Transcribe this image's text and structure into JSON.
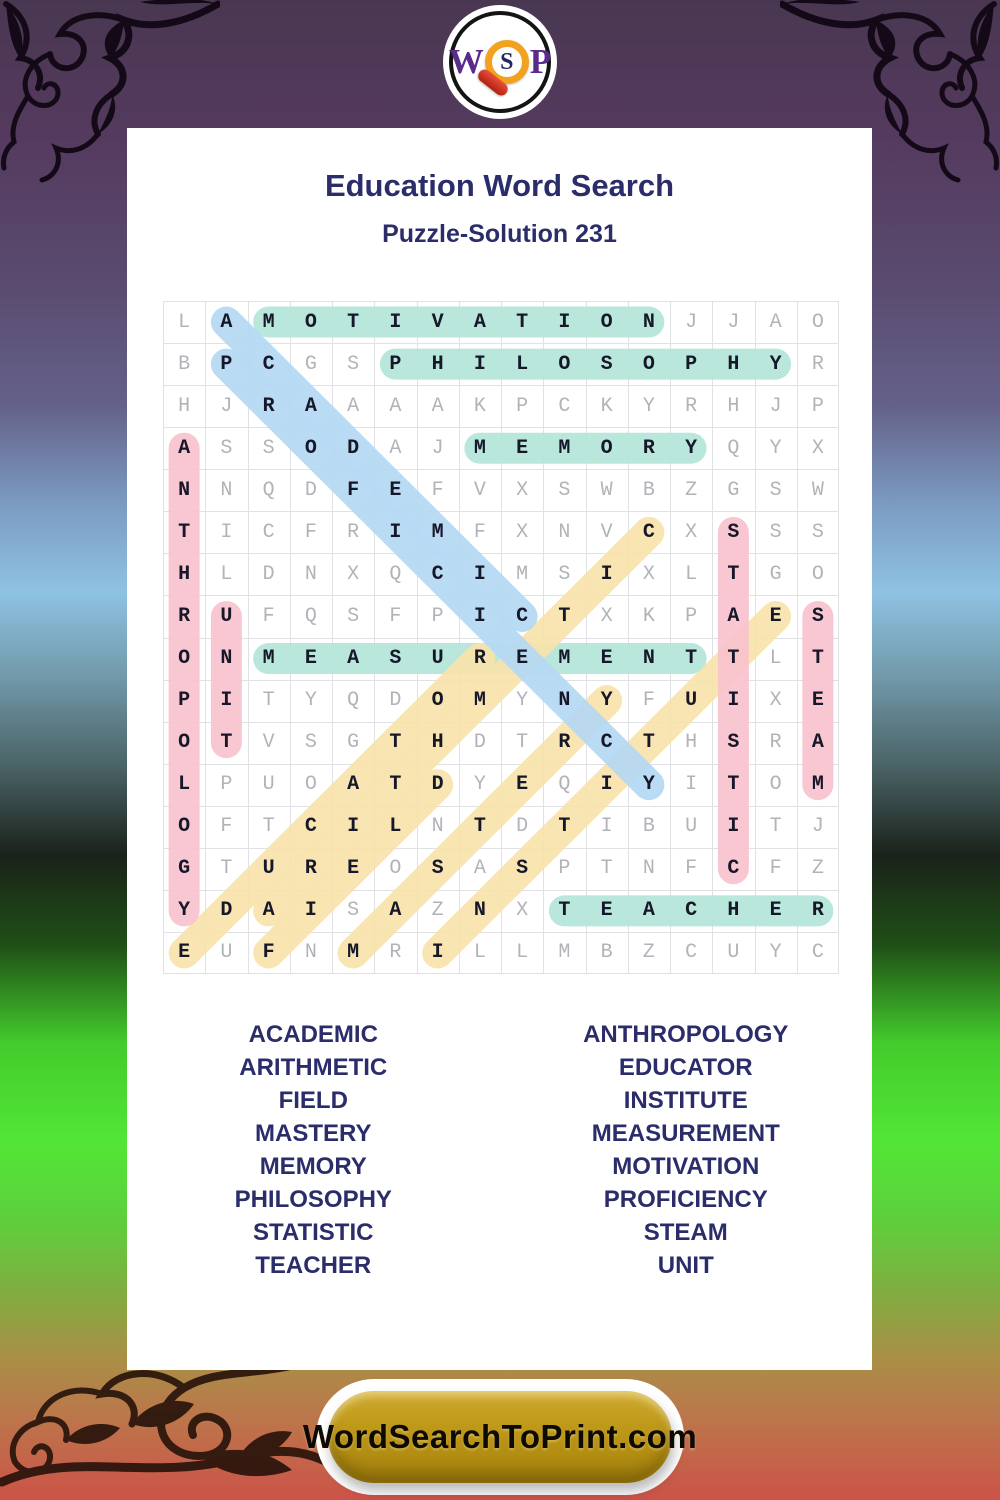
{
  "logo": {
    "w": "W",
    "s": "S",
    "p": "P"
  },
  "header": {
    "title": "Education Word Search",
    "subtitle": "Puzzle-Solution 231"
  },
  "grid": {
    "rows": [
      "LAMOTIVATIONJJAO",
      "BPCGSPHILOSOPHYR",
      "HJRAAAAKPCKYRHJP",
      "ASSODAJMEMORYQYX",
      "NNQDFEFVXSWBZGSW",
      "TICFRIMFXNVCXSSS",
      "HLDNXQCIMSIXLTGO",
      "RUFQSFPICTXKPAES",
      "ONMEASUREMENTTLT",
      "PITYQDOMYNYFUIXE",
      "OTVSGTHDTRCTHSRA",
      "LPUOATDYEQIYITOM",
      "OFTCILNTDTIBUITJ",
      "GTUREOSASPTNFCFZ",
      "YDAISAZNXTEACHER",
      "EUFNMRILLMBZCUYC"
    ],
    "highlights": [
      {
        "word": "MOTIVATION",
        "color": "teal",
        "from": [
          0,
          2
        ],
        "to": [
          0,
          11
        ]
      },
      {
        "word": "PHILOSOPHY",
        "color": "teal",
        "from": [
          1,
          5
        ],
        "to": [
          1,
          14
        ]
      },
      {
        "word": "MEMORY",
        "color": "teal",
        "from": [
          3,
          7
        ],
        "to": [
          3,
          12
        ]
      },
      {
        "word": "MEASUREMENT",
        "color": "teal",
        "from": [
          8,
          2
        ],
        "to": [
          8,
          12
        ]
      },
      {
        "word": "TEACHER",
        "color": "teal",
        "from": [
          14,
          9
        ],
        "to": [
          14,
          15
        ]
      },
      {
        "word": "EDUCATOR",
        "color": "yellow",
        "from": [
          15,
          0
        ],
        "to": [
          8,
          7
        ]
      },
      {
        "word": "FIELD",
        "color": "yellow",
        "from": [
          15,
          2
        ],
        "to": [
          11,
          6
        ]
      },
      {
        "word": "MASTERY",
        "color": "yellow",
        "from": [
          15,
          4
        ],
        "to": [
          9,
          10
        ]
      },
      {
        "word": "INSTITUTE",
        "color": "yellow",
        "from": [
          15,
          6
        ],
        "to": [
          7,
          14
        ]
      },
      {
        "word": "ARITHMETIC",
        "color": "yellow",
        "from": [
          14,
          2
        ],
        "to": [
          5,
          11
        ]
      },
      {
        "word": "ANTHROPOLOGY",
        "color": "pink",
        "from": [
          3,
          0
        ],
        "to": [
          14,
          0
        ]
      },
      {
        "word": "UNIT",
        "color": "pink",
        "from": [
          7,
          1
        ],
        "to": [
          10,
          1
        ]
      },
      {
        "word": "STATISTIC",
        "color": "pink",
        "from": [
          5,
          13
        ],
        "to": [
          13,
          13
        ]
      },
      {
        "word": "STEAM",
        "color": "pink",
        "from": [
          7,
          15
        ],
        "to": [
          11,
          15
        ]
      },
      {
        "word": "ACADEMIC",
        "color": "blue",
        "from": [
          0,
          1
        ],
        "to": [
          7,
          8
        ]
      },
      {
        "word": "PROFICIENCY",
        "color": "blue",
        "from": [
          1,
          1
        ],
        "to": [
          11,
          11
        ]
      }
    ]
  },
  "word_lists": {
    "left": [
      "ACADEMIC",
      "ARITHMETIC",
      "FIELD",
      "MASTERY",
      "MEMORY",
      "PHILOSOPHY",
      "STATISTIC",
      "TEACHER"
    ],
    "right": [
      "ANTHROPOLOGY",
      "EDUCATOR",
      "INSTITUTE",
      "MEASUREMENT",
      "MOTIVATION",
      "PROFICIENCY",
      "STEAM",
      "UNIT"
    ]
  },
  "footer": {
    "button_label": "WordSearchToPrint.com"
  },
  "colors": {
    "teal": "#b4e6d9",
    "pink": "#f9c3ce",
    "blue": "#b5d9f4",
    "yellow": "#f8e3ab",
    "text_navy": "#2b2d6b",
    "button_gold": "#bb9516",
    "grid_line": "#e0e1e5"
  }
}
